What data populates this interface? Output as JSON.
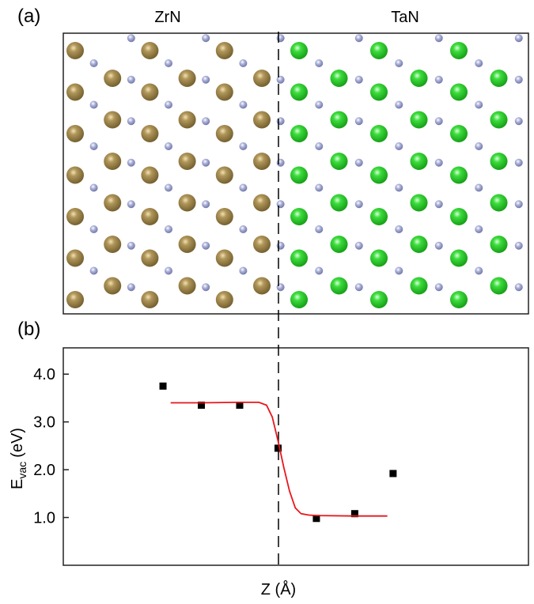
{
  "panel_a": {
    "label": "(a)",
    "left_title": "ZrN",
    "right_title": "TaN"
  },
  "chart_data": {
    "type": "scatter",
    "panel_label": "(b)",
    "x_label": "Z (Å)",
    "y_label": {
      "main": "E",
      "sub": "vac",
      "unit": "(eV)"
    },
    "xlim": [
      -2.6,
      9.53
    ],
    "ylim": [
      0,
      4.55
    ],
    "yticks": [
      {
        "value": 1,
        "label": "1.0"
      },
      {
        "value": 2,
        "label": "2.0"
      },
      {
        "value": 3,
        "label": "3.0"
      },
      {
        "value": 4,
        "label": "4.0"
      }
    ],
    "series": [
      {
        "color": "#000000",
        "marker": "square",
        "x": [
          0,
          1,
          2,
          3,
          4,
          5,
          6
        ],
        "values": [
          3.75,
          3.35,
          3.35,
          2.45,
          0.98,
          1.08,
          1.92
        ]
      },
      {
        "color": "#e8161b",
        "marker": "line",
        "x": [
          0.2,
          1,
          2,
          2.5,
          2.7,
          2.85,
          3,
          3.15,
          3.3,
          3.45,
          3.6,
          3.8,
          4,
          5,
          5.85
        ],
        "values": [
          3.4,
          3.4,
          3.41,
          3.41,
          3.35,
          3.1,
          2.6,
          2.05,
          1.55,
          1.2,
          1.08,
          1.05,
          1.04,
          1.03,
          1.03
        ]
      }
    ]
  }
}
